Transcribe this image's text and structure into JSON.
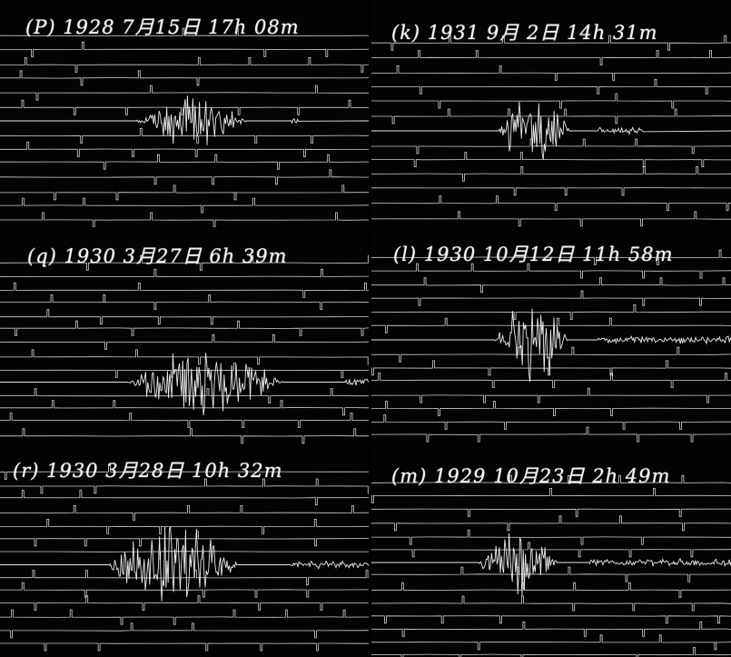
{
  "figure": {
    "panels": [
      {
        "id": "p",
        "caption": "(P) 1928 7月15日 17h 08m",
        "seed": 11,
        "burst_intensity": 0.55,
        "trace_color": "#e9e9e9"
      },
      {
        "id": "k",
        "caption": "(k) 1931 9月 2日 14h 31m",
        "seed": 23,
        "burst_intensity": 0.85,
        "trace_color": "#e9e9e9"
      },
      {
        "id": "q",
        "caption": "(q) 1930 3月27日 6h 39m",
        "seed": 37,
        "burst_intensity": 0.8,
        "trace_color": "#e9e9e9"
      },
      {
        "id": "l",
        "caption": "(l) 1930 10月12日 11h 58m",
        "seed": 41,
        "burst_intensity": 1.0,
        "trace_color": "#e9e9e9"
      },
      {
        "id": "r",
        "caption": "(r) 1930 3月28日 10h 32m",
        "seed": 53,
        "burst_intensity": 0.95,
        "trace_color": "#e9e9e9"
      },
      {
        "id": "m",
        "caption": "(m) 1929 10月23日 2h 49m",
        "seed": 67,
        "burst_intensity": 0.75,
        "trace_color": "#e9e9e9"
      }
    ]
  }
}
